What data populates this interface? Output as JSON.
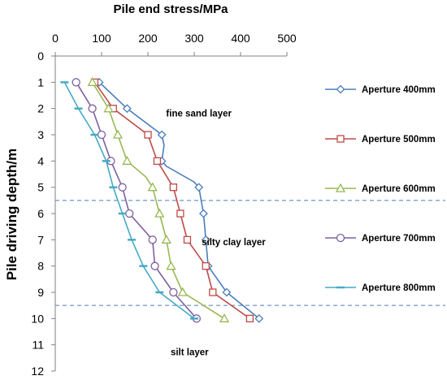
{
  "chart_data": {
    "type": "line",
    "title": "Pile end stress/MPa",
    "xlabel": "Pile end stress/MPa",
    "ylabel": "Pile driving depth/m",
    "x_axis_position": "top",
    "y_inverted": true,
    "xlim": [
      0,
      500
    ],
    "ylim": [
      0,
      12
    ],
    "x_ticks": [
      0,
      100,
      200,
      300,
      400,
      500
    ],
    "y_ticks": [
      0,
      1,
      2,
      3,
      4,
      5,
      6,
      7,
      8,
      9,
      10,
      11,
      12
    ],
    "grid": false,
    "legend_position": "right",
    "series": [
      {
        "name": "Aperture 400mm",
        "color": "#4a7ebb",
        "marker": "diamond",
        "points": [
          [
            95,
            1
          ],
          [
            155,
            2
          ],
          [
            230,
            3
          ],
          [
            235,
            3.4
          ],
          [
            230,
            4
          ],
          [
            240,
            4.2
          ],
          [
            300,
            4.8
          ],
          [
            310,
            5
          ],
          [
            320,
            6
          ],
          [
            325,
            7
          ],
          [
            330,
            8
          ],
          [
            370,
            9
          ],
          [
            440,
            10
          ]
        ]
      },
      {
        "name": "Aperture 500mm",
        "color": "#be4b48",
        "marker": "square",
        "points": [
          [
            85,
            1
          ],
          [
            125,
            2
          ],
          [
            200,
            3
          ],
          [
            220,
            4
          ],
          [
            255,
            5
          ],
          [
            270,
            6
          ],
          [
            285,
            7
          ],
          [
            325,
            8
          ],
          [
            340,
            9
          ],
          [
            420,
            10
          ]
        ]
      },
      {
        "name": "Aperture 600mm",
        "color": "#98b954",
        "marker": "triangle",
        "points": [
          [
            80,
            1
          ],
          [
            115,
            2
          ],
          [
            135,
            3
          ],
          [
            155,
            4
          ],
          [
            195,
            4.6
          ],
          [
            210,
            5
          ],
          [
            225,
            6
          ],
          [
            240,
            7
          ],
          [
            250,
            8
          ],
          [
            275,
            9
          ],
          [
            365,
            10
          ]
        ]
      },
      {
        "name": "Aperture 700mm",
        "color": "#7d60a0",
        "marker": "circle",
        "points": [
          [
            45,
            1
          ],
          [
            80,
            2
          ],
          [
            100,
            3
          ],
          [
            120,
            4
          ],
          [
            145,
            5
          ],
          [
            160,
            6
          ],
          [
            210,
            7
          ],
          [
            215,
            8
          ],
          [
            255,
            9
          ],
          [
            305,
            10
          ]
        ]
      },
      {
        "name": "Aperture 800mm",
        "color": "#46aac5",
        "marker": "dash",
        "points": [
          [
            20,
            1
          ],
          [
            50,
            2
          ],
          [
            85,
            3
          ],
          [
            110,
            4
          ],
          [
            125,
            5
          ],
          [
            145,
            6
          ],
          [
            165,
            7
          ],
          [
            190,
            8
          ],
          [
            225,
            9
          ],
          [
            300,
            10
          ]
        ]
      }
    ],
    "reference_lines": [
      {
        "orientation": "horizontal",
        "y": 5.5,
        "style": "dashed",
        "color": "#4a7ebb"
      },
      {
        "orientation": "horizontal",
        "y": 9.5,
        "style": "dashed",
        "color": "#4a7ebb"
      }
    ],
    "annotations": [
      {
        "text": "fine sand layer",
        "x": 310,
        "y": 2.3
      },
      {
        "text": "silty clay layer",
        "x": 385,
        "y": 7.2
      },
      {
        "text": "silt layer",
        "x": 290,
        "y": 11.4
      }
    ]
  }
}
